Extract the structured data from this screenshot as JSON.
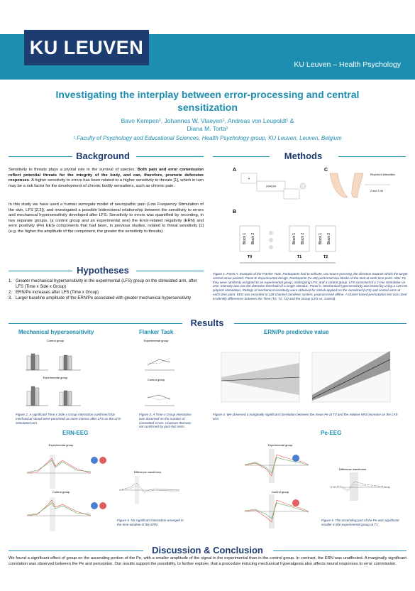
{
  "header": {
    "logo": "KU LEUVEN",
    "unit": "KU Leuven – Health Psychology"
  },
  "title": "Investigating the interplay between error-processing and central sensitization",
  "authors_line1": "Bavo Kempen¹, Johannes W. Vlaeyen¹, Andreas von Leupoldt¹ &",
  "authors_line2": "Diana M. Torta¹",
  "affiliation": "¹ Faculty of Psychology and Educational Sciences, Health Psychology group, KU Leuven, Leuven, Belgium",
  "background": {
    "title": "Background",
    "p1_pre": "Sensitivity to threats plays a pivotal role in the survival of species. ",
    "p1_bold": "Both pain and error commission reflect potential threats for the integrity of the body, and can, therefore, promote defensive responses",
    "p1_post": ". A higher sensitivity to errors has been related to a higher sensitivity to threats [1], which in turn may be a risk factor for the development of chronic bodily sensations, such as chronic pain.",
    "p2": "In this study we have used a human surrogate model of neuropathic pain (Low Frequency Stimulation of the skin, LFS [2,3]), and investigated a possible bidirectional relationship between the sensitivity to errors and mechanical hypersensitivity developed after LFS. Sensitivity to errors was quantified by recording, in two separate groups, (a control group and an experimental one) the Error-related negativity (ERN) and error positivity (Pe) EEG components that had been, in previous studies, related to threat sensitivity [1] (e.g. the higher the amplitude of the component, the greater the sensitivity to threats)."
  },
  "hypotheses": {
    "title": "Hypotheses",
    "items": [
      "Greater mechanical hypersensitivity in the experimental (LFS) group on the stimulated arm, after LFS (Time x Side x Group)",
      "ERN/Pe increases after LFS (Time x Group)",
      "Larger baseline amplitude of the ERN/Pe associated with greater mechanical hypersensitivity"
    ]
  },
  "methods": {
    "title": "Methods",
    "labels": [
      "A",
      "B",
      "C"
    ],
    "a_text": ">><>>",
    "block_labels": [
      "Block 1",
      "Block 2",
      "Block 1",
      "Block 2",
      "Block 1",
      "Block 2"
    ],
    "times": [
      "T0",
      "T1",
      "T2"
    ],
    "c_text1": "Pinprick 8 intensities",
    "c_text2": "2 min 2 Hz",
    "caption": "Figure 1. Panel A. Example of the Flanker Task. Participants had to indicate, via mouse pressing, the direction towards which the target central arrow pointed. Panel B. Experimental design. Participants (N=40) performed two blocks of the task at each time point. After T0, they were randomly assigned to an experimental group, undergoing LFS, and a control group. LFS consisted of a 2-min stimulation at 2Hz. Intensity was 10x the detection threshold of a single stimulus. Panel C. Mechanical hypersensitivity was tested by using a 128 mN pinprick stimulation. Ratings of mechanical sensitivity were obtained for stimuli applied on the sensitized (LFS) and control arms at each time point. EEG was recorded at 128-channel Geodesic system, preprocessed offline. A cluster-based permutation test was used to identify differences between the Time (T0, T1, T2) and the Group (LFS vs. control)."
  },
  "results": {
    "title": "Results",
    "mech_title": "Mechanical hypersensitivity",
    "flanker_title": "Flanker Task",
    "erpe_title": "ERN/Pe predictive value",
    "ern_title": "ERN-EEG",
    "pe_title": "Pe-EEG",
    "mech_groups": [
      "Control group",
      "Experimental group"
    ],
    "flanker_groups": [
      "Experimental group",
      "Control group"
    ],
    "cap2": "Figure 2. A significant Time x Side x Group interaction confirmed that mechanical stimuli were perceived as more intense after LFS on the LFS-stimulated arm.",
    "cap3": "Figure 3. A Time x Group interaction was observed on the number of committed errors. However that was not confirmed by post-hoc tests.",
    "cap4": "Figure 4. We observed a marginally significant correlation between the mean Pe at T0 and the relative NRS increase on the LFS arm.",
    "cap5a": "Figure 5. No significant interaction emerged in the time-window of the ERN",
    "cap5b": "Figure 5. The ascending part of the Pe was significant smaller in the experimental group at T1",
    "ern_groups": [
      "Experimental group",
      "Control group"
    ],
    "diff_label": "Difference waveforms",
    "pe_groups": [
      "Experimental group",
      "Control group"
    ]
  },
  "discussion": {
    "title": "Discussion & Conclusion",
    "text": "We found a significant effect of group on the ascending portion of the Pe, with a smaller amplitude of the signal in the experimental than in the control group. In contrast, the ERN was unaffected. A marginally significant correlation was observed between the Pe and perception. Our results support the possibility, to further explore, that a procedure inducing mechanical hyperalgesia also affects neural responses to error commission."
  },
  "colors": {
    "primary": "#1d8db0",
    "dark_blue": "#1d3c70"
  }
}
